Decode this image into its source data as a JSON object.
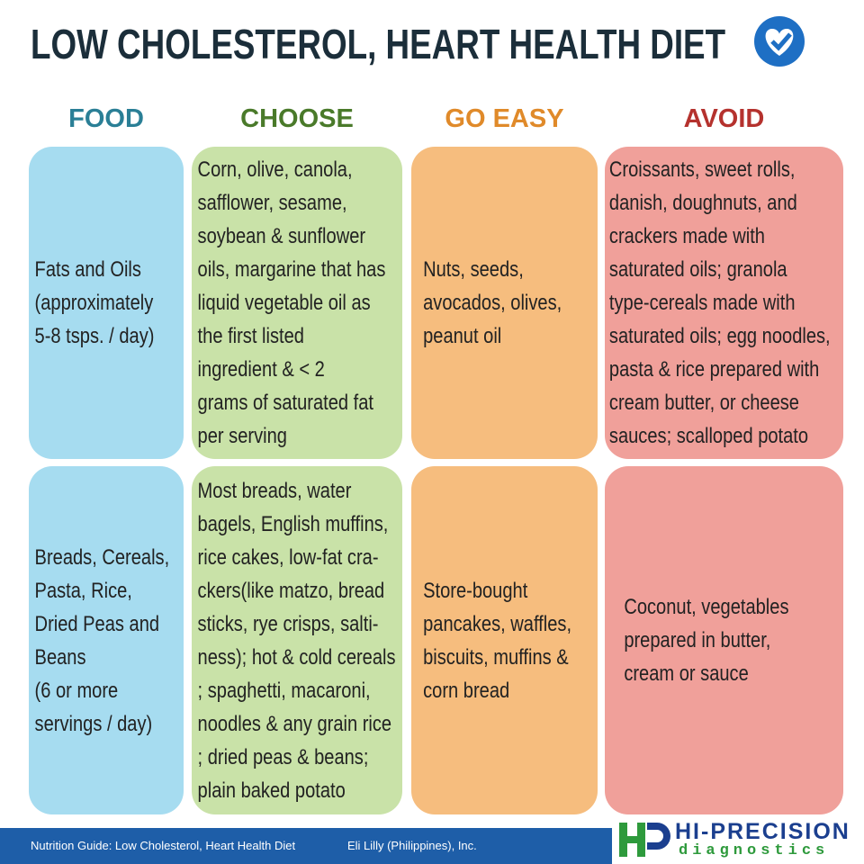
{
  "header": {
    "title": "LOW CHOLESTEROL, HEART HEALTH DIET"
  },
  "table": {
    "columns": [
      "FOOD",
      "CHOOSE",
      "GO EASY",
      "AVOID"
    ],
    "rows": [
      [
        [
          "Fats and Oils",
          "(approximately",
          "5-8 tsps. / day)"
        ],
        [
          "Corn, olive, canola,",
          "safflower, sesame,",
          "soybean & sunflower",
          "oils, margarine that has",
          "liquid vegetable oil as",
          "the first listed",
          "ingredient & < 2",
          "grams of saturated fat",
          "per serving"
        ],
        [
          "Nuts, seeds,",
          "avocados, olives,",
          "peanut oil"
        ],
        [
          "Croissants, sweet rolls,",
          "danish, doughnuts, and",
          "crackers made with",
          "saturated oils; granola",
          "type-cereals made with",
          "saturated oils; egg noodles,",
          "pasta & rice prepared with",
          "cream butter, or cheese",
          "sauces; scalloped potato"
        ]
      ],
      [
        [
          "Breads, Cereals,",
          "Pasta, Rice,",
          "Dried Peas and",
          "Beans",
          "(6 or more",
          "servings / day)"
        ],
        [
          "Most breads, water",
          "bagels, English muffins,",
          "rice cakes, low-fat cra-",
          "ckers(like matzo, bread",
          "sticks, rye crisps, salti-",
          "ness); hot & cold cereals",
          "; spaghetti, macaroni,",
          "noodles & any grain rice",
          "; dried peas & beans;",
          "plain baked potato"
        ],
        [
          "Store-bought",
          "pancakes, waffles,",
          "biscuits, muffins &",
          "corn bread"
        ],
        [
          "Coconut, vegetables",
          "prepared in butter,",
          "cream or sauce"
        ]
      ]
    ]
  },
  "footer": {
    "source": "Nutrition Guide: Low Cholesterol, Heart Health Diet",
    "publisher": "Eli Lilly (Philippines), Inc.",
    "brand": "HI-PRECISION",
    "brand_sub": "diagnostics"
  }
}
